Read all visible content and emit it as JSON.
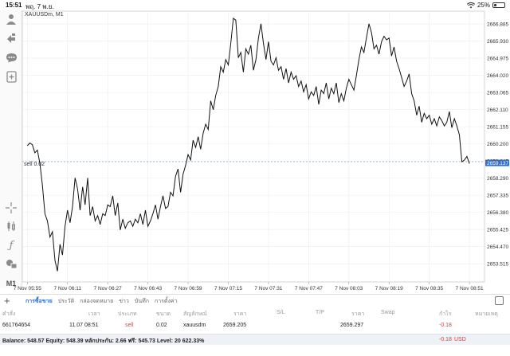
{
  "status": {
    "time": "15:51",
    "date": "พฤ. 7 พ.ย.",
    "battery": "25%",
    "battery_level": 0.25
  },
  "chart": {
    "symbol_label": "XAUUSDm, M1",
    "order_label": "sell 0.02",
    "current_price": "2659.137",
    "timeframe_button": "M1"
  },
  "chart_data": {
    "type": "line",
    "title": "XAUUSDm, M1",
    "xlabel": "",
    "ylabel": "",
    "ylim": [
      2652.5,
      2667.6
    ],
    "y_ticks": [
      "2666.885",
      "2665.930",
      "2664.975",
      "2664.020",
      "2663.065",
      "2662.110",
      "2661.155",
      "2660.200",
      "2659.245",
      "2658.290",
      "2657.335",
      "2656.380",
      "2655.425",
      "2654.470",
      "2653.515"
    ],
    "x_ticks": [
      "7 Nov 05:55",
      "7 Nov 06:11",
      "7 Nov 06:27",
      "7 Nov 06:43",
      "7 Nov 06:59",
      "7 Nov 07:15",
      "7 Nov 07:31",
      "7 Nov 07:47",
      "7 Nov 08:03",
      "7 Nov 08:19",
      "7 Nov 08:35",
      "7 Nov 08:51"
    ],
    "x_range_minutes": [
      -2,
      182
    ],
    "order_line_price": 2659.205,
    "current_price": 2659.137,
    "series": [
      {
        "values": [
          [
            0,
            2660.1
          ],
          [
            1,
            2660.25
          ],
          [
            2,
            2660.15
          ],
          [
            3,
            2659.7
          ],
          [
            4,
            2659.85
          ],
          [
            5,
            2659.1
          ],
          [
            6,
            2657.9
          ],
          [
            7,
            2656.3
          ],
          [
            8,
            2655.9
          ],
          [
            9,
            2655.0
          ],
          [
            10,
            2655.3
          ],
          [
            11,
            2653.7
          ],
          [
            12,
            2653.1
          ],
          [
            13,
            2654.6
          ],
          [
            14,
            2654.0
          ],
          [
            15,
            2655.6
          ],
          [
            16,
            2656.5
          ],
          [
            17,
            2655.8
          ],
          [
            18,
            2656.7
          ],
          [
            19,
            2658.3
          ],
          [
            20,
            2657.7
          ],
          [
            21,
            2656.5
          ],
          [
            22,
            2657.8
          ],
          [
            23,
            2656.8
          ],
          [
            24,
            2658.3
          ],
          [
            25,
            2656.2
          ],
          [
            26,
            2656.7
          ],
          [
            27,
            2655.9
          ],
          [
            28,
            2656.2
          ],
          [
            29,
            2655.7
          ],
          [
            30,
            2656.3
          ],
          [
            31,
            2656.2
          ],
          [
            32,
            2656.8
          ],
          [
            33,
            2656.7
          ],
          [
            34,
            2657.3
          ],
          [
            35,
            2656.2
          ],
          [
            36,
            2656.9
          ],
          [
            37,
            2655.4
          ],
          [
            38,
            2656.0
          ],
          [
            39,
            2655.5
          ],
          [
            40,
            2655.8
          ],
          [
            41,
            2655.9
          ],
          [
            42,
            2655.6
          ],
          [
            43,
            2656.0
          ],
          [
            44,
            2655.8
          ],
          [
            45,
            2656.3
          ],
          [
            46,
            2655.7
          ],
          [
            47,
            2656.5
          ],
          [
            48,
            2655.6
          ],
          [
            49,
            2655.9
          ],
          [
            50,
            2656.3
          ],
          [
            51,
            2656.8
          ],
          [
            52,
            2656.0
          ],
          [
            53,
            2656.7
          ],
          [
            54,
            2657.3
          ],
          [
            55,
            2656.6
          ],
          [
            56,
            2656.7
          ],
          [
            57,
            2657.5
          ],
          [
            58,
            2657.3
          ],
          [
            59,
            2658.4
          ],
          [
            60,
            2658.8
          ],
          [
            61,
            2657.5
          ],
          [
            62,
            2658.5
          ],
          [
            63,
            2659.0
          ],
          [
            64,
            2659.6
          ],
          [
            65,
            2659.3
          ],
          [
            66,
            2660.4
          ],
          [
            67,
            2660.0
          ],
          [
            68,
            2660.6
          ],
          [
            69,
            2659.9
          ],
          [
            70,
            2660.8
          ],
          [
            71,
            2661.3
          ],
          [
            72,
            2661.0
          ],
          [
            73,
            2662.6
          ],
          [
            74,
            2662.1
          ],
          [
            75,
            2662.9
          ],
          [
            76,
            2663.4
          ],
          [
            77,
            2664.5
          ],
          [
            78,
            2664.2
          ],
          [
            79,
            2664.9
          ],
          [
            80,
            2664.6
          ],
          [
            81,
            2665.8
          ],
          [
            82,
            2667.2
          ],
          [
            83,
            2667.1
          ],
          [
            84,
            2665.0
          ],
          [
            85,
            2665.3
          ],
          [
            86,
            2664.2
          ],
          [
            87,
            2665.5
          ],
          [
            88,
            2665.2
          ],
          [
            89,
            2665.7
          ],
          [
            90,
            2664.3
          ],
          [
            91,
            2664.9
          ],
          [
            92,
            2666.1
          ],
          [
            93,
            2666.9
          ],
          [
            94,
            2665.8
          ],
          [
            95,
            2664.9
          ],
          [
            96,
            2665.9
          ],
          [
            97,
            2664.8
          ],
          [
            98,
            2664.6
          ],
          [
            99,
            2665.0
          ],
          [
            100,
            2664.3
          ],
          [
            101,
            2664.5
          ],
          [
            102,
            2663.8
          ],
          [
            103,
            2664.4
          ],
          [
            104,
            2663.6
          ],
          [
            105,
            2664.2
          ],
          [
            106,
            2663.8
          ],
          [
            107,
            2664.0
          ],
          [
            108,
            2663.4
          ],
          [
            109,
            2663.7
          ],
          [
            110,
            2663.1
          ],
          [
            111,
            2663.5
          ],
          [
            112,
            2662.7
          ],
          [
            113,
            2663.1
          ],
          [
            114,
            2662.9
          ],
          [
            115,
            2663.4
          ],
          [
            116,
            2662.4
          ],
          [
            117,
            2663.2
          ],
          [
            118,
            2663.0
          ],
          [
            119,
            2663.6
          ],
          [
            120,
            2662.7
          ],
          [
            121,
            2663.3
          ],
          [
            122,
            2663.0
          ],
          [
            123,
            2663.6
          ],
          [
            124,
            2662.5
          ],
          [
            125,
            2663.0
          ],
          [
            126,
            2662.6
          ],
          [
            127,
            2663.3
          ],
          [
            128,
            2663.8
          ],
          [
            129,
            2663.5
          ],
          [
            130,
            2663.2
          ],
          [
            131,
            2664.0
          ],
          [
            132,
            2664.9
          ],
          [
            133,
            2665.6
          ],
          [
            134,
            2665.3
          ],
          [
            135,
            2666.1
          ],
          [
            136,
            2666.9
          ],
          [
            137,
            2666.4
          ],
          [
            138,
            2665.5
          ],
          [
            139,
            2665.7
          ],
          [
            140,
            2665.2
          ],
          [
            141,
            2665.9
          ],
          [
            142,
            2666.2
          ],
          [
            143,
            2666.0
          ],
          [
            144,
            2666.1
          ],
          [
            145,
            2665.1
          ],
          [
            146,
            2665.6
          ],
          [
            147,
            2664.8
          ],
          [
            148,
            2664.4
          ],
          [
            149,
            2663.9
          ],
          [
            150,
            2663.4
          ],
          [
            151,
            2663.7
          ],
          [
            152,
            2664.1
          ],
          [
            153,
            2663.0
          ],
          [
            154,
            2662.6
          ],
          [
            155,
            2661.8
          ],
          [
            156,
            2662.3
          ],
          [
            157,
            2661.4
          ],
          [
            158,
            2661.9
          ],
          [
            159,
            2661.6
          ],
          [
            160,
            2661.8
          ],
          [
            161,
            2661.3
          ],
          [
            162,
            2661.6
          ],
          [
            163,
            2661.2
          ],
          [
            164,
            2661.7
          ],
          [
            165,
            2661.5
          ],
          [
            166,
            2661.2
          ],
          [
            167,
            2661.4
          ],
          [
            168,
            2662.0
          ],
          [
            169,
            2661.1
          ],
          [
            170,
            2661.6
          ],
          [
            171,
            2661.2
          ],
          [
            172,
            2660.7
          ],
          [
            173,
            2659.2
          ],
          [
            174,
            2659.3
          ],
          [
            175,
            2659.5
          ],
          [
            176,
            2659.1
          ]
        ]
      }
    ],
    "grid": true
  },
  "left_toolbar": {
    "icons": [
      "user-icon",
      "arrows-icon",
      "chat-icon",
      "add-chart-icon",
      "crosshair-icon",
      "candles-icon",
      "function-icon",
      "objects-icon"
    ]
  },
  "tabs": {
    "items": [
      "การซื้อขาย",
      "ประวัติ",
      "กล่องจดหมาย",
      "ข่าว",
      "บันทึก",
      "การตั้งค่า"
    ]
  },
  "table": {
    "headers": [
      "คำสั่ง",
      "เวลา",
      "ประเภท",
      "ขนาด",
      "สัญลักษณ์",
      "ราคา",
      "S/L",
      "T/P",
      "ราคา",
      "Swap",
      "กำไร",
      "หมายเหตุ"
    ],
    "row": {
      "order": "661764654",
      "time": "11.07 08:51",
      "type": "sell",
      "size": "0.02",
      "symbol": "xauusdm",
      "price_open": "2659.205",
      "sl": "",
      "tp": "",
      "price_current": "2659.297",
      "swap": "",
      "profit": "-0.18"
    }
  },
  "balance": {
    "text": "Balance: 548.57 Equity: 548.39 หลักประกัน: 2.66 ฟรี: 545.73 Level: 20 622.33%",
    "value": "-0.18",
    "currency": "USD"
  },
  "colors": {
    "accent": "#2a6fd6",
    "price_tag_bg": "#2f6fc9",
    "loss": "#e03c3c",
    "grid": "#ececec",
    "line": "#111111"
  }
}
